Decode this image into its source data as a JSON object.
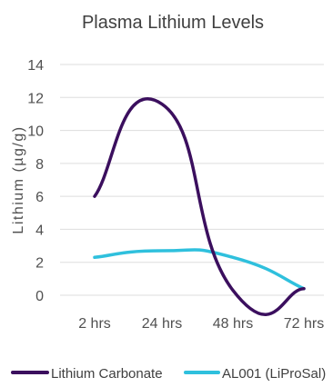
{
  "chart_data": {
    "type": "line",
    "title": "Plasma Lithium Levels",
    "xlabel": "",
    "ylabel": "Lithium (µg/g)",
    "categories": [
      "2 hrs",
      "24 hrs",
      "48 hrs",
      "72 hrs"
    ],
    "ylim": [
      0,
      14
    ],
    "yticks": [
      0,
      2,
      4,
      6,
      8,
      10,
      12,
      14
    ],
    "grid": true,
    "legend_position": "bottom",
    "series": [
      {
        "name": "Lithium Carbonate",
        "color": "#3b0f5e",
        "values": [
          6.0,
          11.6,
          0.3,
          0.4
        ]
      },
      {
        "name": "AL001 (LiProSal)",
        "color": "#2fc0dd",
        "values": [
          2.3,
          2.7,
          2.3,
          0.4
        ]
      }
    ]
  }
}
